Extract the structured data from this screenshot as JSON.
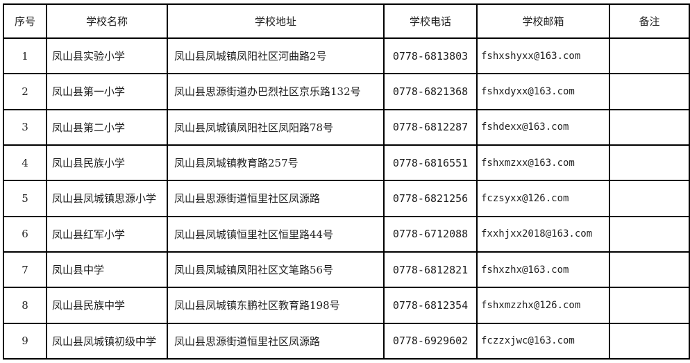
{
  "table": {
    "title": "school-directory-table",
    "colors": {
      "border": "#000000",
      "text": "#1f1f1f",
      "background": "#ffffff"
    },
    "headers": {
      "seq": "序号",
      "name": "学校名称",
      "address": "学校地址",
      "phone": "学校电话",
      "email": "学校邮箱",
      "remark": "备注"
    },
    "rows": [
      {
        "seq": "1",
        "name": "凤山县实验小学",
        "address": "凤山县凤城镇凤阳社区河曲路2号",
        "phone": "0778-6813803",
        "email": "fshxshyxx@163.com",
        "remark": ""
      },
      {
        "seq": "2",
        "name": "凤山县第一小学",
        "address": "凤山县思源街道办巴烈社区京乐路132号",
        "phone": "0778-6821368",
        "email": "fshxdyxx@163.com",
        "remark": ""
      },
      {
        "seq": "3",
        "name": "凤山县第二小学",
        "address": "凤山县凤城镇凤阳社区凤阳路78号",
        "phone": "0778-6812287",
        "email": "fshdexx@163.com",
        "remark": ""
      },
      {
        "seq": "4",
        "name": "凤山县民族小学",
        "address": "凤山县凤城镇教育路257号",
        "phone": "0778-6816551",
        "email": "fshxmzxx@163.com",
        "remark": ""
      },
      {
        "seq": "5",
        "name": "凤山县凤城镇思源小学",
        "address": "凤山县思源街道恒里社区凤源路",
        "phone": "0778-6821256",
        "email": "fczsyxx@126.com",
        "remark": ""
      },
      {
        "seq": "6",
        "name": "凤山县红军小学",
        "address": "凤山县凤城镇恒里社区恒里路44号",
        "phone": "0778-6712088",
        "email": "fxxhjxx2018@163.com",
        "remark": ""
      },
      {
        "seq": "7",
        "name": "凤山县中学",
        "address": "凤山县凤城镇凤阳社区文笔路56号",
        "phone": "0778-6812821",
        "email": "fshxzhx@163.com",
        "remark": ""
      },
      {
        "seq": "8",
        "name": "凤山县民族中学",
        "address": "凤山县凤城镇东鹏社区教育路198号",
        "phone": "0778-6812354",
        "email": "fshxmzzhx@126.com",
        "remark": ""
      },
      {
        "seq": "9",
        "name": "凤山县凤城镇初级中学",
        "address": "凤山县思源街道恒里社区凤源路",
        "phone": "0778-6929602",
        "email": "fczzxjwc@163.com",
        "remark": ""
      }
    ]
  }
}
